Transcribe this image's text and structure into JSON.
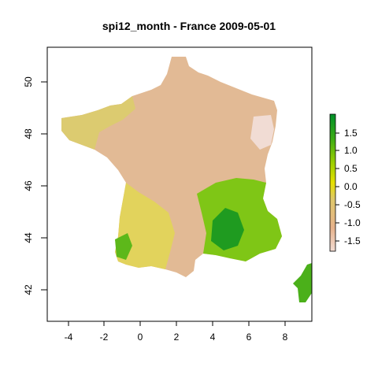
{
  "chart_data": {
    "type": "heatmap",
    "title": "spi12_month - France 2009-05-01",
    "xlabel": "",
    "ylabel": "",
    "xlim": [
      -5.0,
      9.5
    ],
    "ylim": [
      40.8,
      51.4
    ],
    "x_ticks": [
      "-4",
      "-2",
      "0",
      "2",
      "4",
      "6",
      "8"
    ],
    "y_ticks": [
      "42",
      "44",
      "46",
      "48",
      "50"
    ],
    "legend": {
      "position": "right",
      "range": [
        -1.9,
        1.95
      ],
      "ticks": [
        "1.5",
        "1.0",
        "0.5",
        "0.0",
        "-0.5",
        "-1.0",
        "-1.5"
      ],
      "colors": [
        "#f2dcd3",
        "#e6b28c",
        "#dfc86a",
        "#e6e000",
        "#9fd000",
        "#3cac14",
        "#00902a"
      ]
    },
    "grid": false,
    "regions": [
      {
        "name": "France mainland",
        "spi_range": [
          -1.9,
          1.8
        ]
      },
      {
        "name": "Corsica",
        "spi_range": [
          1.0,
          1.6
        ]
      }
    ]
  }
}
